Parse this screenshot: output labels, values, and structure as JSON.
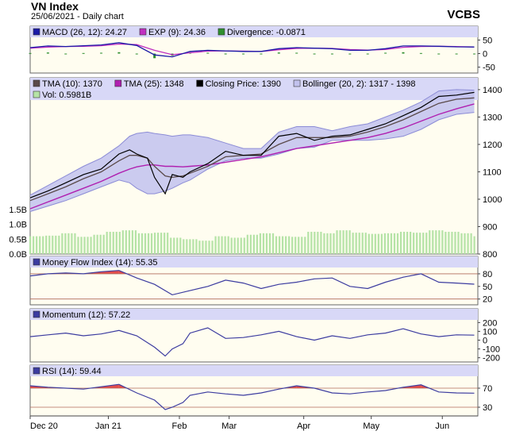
{
  "header": {
    "title": "VN Index",
    "subtitle": "25/06/2021 - Daily chart",
    "brand": "VCBS"
  },
  "colors": {
    "background": "#fffdf0",
    "legend_band": "#d8d8f7",
    "price": "#000000",
    "tma10": "#5a4a4a",
    "tma25": "#b020b0",
    "bollinger_fill": "#c2c2ee",
    "bollinger_line": "#8c8cd6",
    "volume": "#b5e3a6",
    "macd": "#1a1aa6",
    "signal": "#c030c0",
    "divergence": "#2f8f2f",
    "indicator_line": "#3c3ca0",
    "overbought_fill": "#e03a3a",
    "threshold": "#b06a5a"
  },
  "chart_data": [
    {
      "type": "line",
      "panel": "MACD",
      "legend": [
        {
          "text": "MACD (26, 12): 24.27",
          "color": "#1a1aa6"
        },
        {
          "text": "EXP (9): 24.36",
          "color": "#c030c0"
        },
        {
          "text": "Divergence: -0.0871",
          "color": "#2f8f2f"
        }
      ],
      "yticks": [
        "50",
        "0",
        "-50"
      ],
      "ylim": [
        -60,
        60
      ],
      "series": [
        {
          "name": "MACD (26, 12)",
          "x": [
            0,
            5,
            10,
            15,
            20,
            25,
            30,
            35,
            40,
            45,
            50,
            55,
            60,
            65,
            70,
            75,
            80,
            85,
            90,
            95,
            100,
            105,
            110,
            115,
            120,
            125
          ],
          "values": [
            22,
            28,
            26,
            29,
            32,
            40,
            30,
            -5,
            -12,
            8,
            12,
            10,
            8,
            8,
            18,
            22,
            20,
            18,
            12,
            12,
            18,
            28,
            28,
            27,
            25,
            24.27
          ]
        },
        {
          "name": "EXP (9)",
          "x": [
            0,
            5,
            10,
            15,
            20,
            25,
            30,
            35,
            40,
            45,
            50,
            55,
            60,
            65,
            70,
            75,
            80,
            85,
            90,
            95,
            100,
            105,
            110,
            115,
            120,
            125
          ],
          "values": [
            20,
            24,
            26,
            27,
            29,
            35,
            33,
            12,
            -4,
            3,
            9,
            10,
            9,
            8,
            14,
            19,
            20,
            19,
            15,
            13,
            15,
            23,
            26,
            27,
            26,
            24.36
          ]
        },
        {
          "name": "Divergence",
          "x": [
            0,
            5,
            10,
            15,
            20,
            25,
            30,
            35,
            40,
            45,
            50,
            55,
            60,
            65,
            70,
            75,
            80,
            85,
            90,
            95,
            100,
            105,
            110,
            115,
            120,
            125
          ],
          "values": [
            2,
            4,
            0,
            2,
            3,
            5,
            -3,
            -17,
            -8,
            5,
            3,
            0,
            -1,
            0,
            4,
            3,
            0,
            -1,
            -3,
            -1,
            3,
            5,
            2,
            0,
            -1,
            -0.0871
          ]
        }
      ]
    },
    {
      "type": "line",
      "panel": "Price",
      "legend": [
        {
          "text": "TMA (10): 1370",
          "color": "#5a4a4a"
        },
        {
          "text": "TMA (25): 1348",
          "color": "#b020b0"
        },
        {
          "text": "Closing Price: 1390",
          "color": "#000000"
        },
        {
          "text": "Bollinger (20, 2): 1317 - 1398",
          "color": "#c2c2ee"
        },
        {
          "text": "Vol: 0.5981B",
          "color": "#b5e3a6"
        }
      ],
      "yticks": [
        "1400",
        "1300",
        "1200",
        "1100",
        "1000",
        "900",
        "800"
      ],
      "ylim": [
        800,
        1420
      ],
      "volume_ticks": [
        "1.5B",
        "1.0B",
        "0.5B",
        "0.0B"
      ],
      "volume_ylim": [
        0,
        1.5
      ],
      "x": [
        0,
        5,
        10,
        15,
        20,
        25,
        28,
        30,
        33,
        35,
        38,
        40,
        43,
        45,
        50,
        55,
        60,
        65,
        70,
        75,
        80,
        85,
        90,
        95,
        100,
        105,
        110,
        115,
        120,
        125
      ],
      "series": [
        {
          "name": "Closing Price",
          "values": [
            1005,
            1030,
            1060,
            1090,
            1110,
            1165,
            1180,
            1165,
            1150,
            1080,
            1020,
            1090,
            1080,
            1100,
            1130,
            1175,
            1160,
            1160,
            1230,
            1240,
            1215,
            1230,
            1235,
            1255,
            1275,
            1305,
            1335,
            1375,
            1380,
            1390
          ]
        },
        {
          "name": "TMA (10)",
          "values": [
            995,
            1020,
            1045,
            1075,
            1100,
            1140,
            1160,
            1160,
            1150,
            1120,
            1085,
            1080,
            1085,
            1095,
            1120,
            1155,
            1160,
            1165,
            1200,
            1225,
            1225,
            1225,
            1230,
            1245,
            1265,
            1290,
            1320,
            1350,
            1365,
            1370
          ]
        },
        {
          "name": "TMA (25)",
          "values": [
            965,
            990,
            1015,
            1040,
            1065,
            1095,
            1110,
            1118,
            1125,
            1125,
            1120,
            1120,
            1118,
            1120,
            1125,
            1135,
            1145,
            1155,
            1170,
            1185,
            1195,
            1205,
            1215,
            1225,
            1240,
            1260,
            1285,
            1310,
            1330,
            1348
          ]
        },
        {
          "name": "Bollinger upper",
          "values": [
            1015,
            1050,
            1085,
            1120,
            1150,
            1195,
            1230,
            1240,
            1245,
            1240,
            1235,
            1230,
            1235,
            1235,
            1225,
            1205,
            1185,
            1185,
            1245,
            1265,
            1265,
            1250,
            1265,
            1275,
            1300,
            1325,
            1355,
            1395,
            1400,
            1398
          ]
        },
        {
          "name": "Bollinger lower",
          "values": [
            955,
            975,
            995,
            1020,
            1045,
            1070,
            1060,
            1040,
            1020,
            1020,
            1030,
            1040,
            1060,
            1070,
            1110,
            1140,
            1150,
            1150,
            1165,
            1185,
            1190,
            1215,
            1215,
            1215,
            1220,
            1230,
            1255,
            1290,
            1310,
            1317
          ]
        }
      ],
      "volume": [
        0.6,
        0.62,
        0.7,
        0.58,
        0.65,
        0.75,
        0.8,
        0.7,
        0.72,
        0.55,
        0.5,
        0.45,
        0.6,
        0.55,
        0.65,
        0.7,
        0.6,
        0.58,
        0.75,
        0.7,
        0.8,
        0.72,
        0.68,
        0.7,
        0.75,
        0.72,
        0.8,
        0.75,
        0.7,
        0.6
      ]
    },
    {
      "type": "line",
      "panel": "Money Flow Index",
      "legend": [
        {
          "text": "Money Flow Index (14): 55.35",
          "color": "#3c3ca0"
        }
      ],
      "yticks": [
        "80",
        "50",
        "20"
      ],
      "ylim": [
        10,
        95
      ],
      "thresholds": [
        80,
        20
      ],
      "x": [
        0,
        5,
        10,
        15,
        20,
        25,
        30,
        35,
        40,
        45,
        50,
        55,
        60,
        65,
        70,
        75,
        80,
        85,
        90,
        95,
        100,
        105,
        110,
        115,
        120,
        125
      ],
      "series": [
        {
          "name": "Money Flow Index (14)",
          "values": [
            75,
            80,
            82,
            80,
            85,
            88,
            70,
            55,
            30,
            40,
            50,
            65,
            58,
            45,
            55,
            60,
            68,
            70,
            50,
            45,
            60,
            72,
            80,
            60,
            58,
            55.35
          ]
        }
      ]
    },
    {
      "type": "line",
      "panel": "Momentum",
      "legend": [
        {
          "text": "Momentum (12): 57.22",
          "color": "#3c3ca0"
        }
      ],
      "yticks": [
        "200",
        "100",
        "0",
        "-100",
        "-200"
      ],
      "ylim": [
        -230,
        230
      ],
      "x": [
        0,
        5,
        10,
        15,
        20,
        25,
        30,
        35,
        38,
        40,
        43,
        45,
        50,
        55,
        60,
        65,
        70,
        75,
        80,
        85,
        90,
        95,
        100,
        105,
        110,
        115,
        120,
        125
      ],
      "series": [
        {
          "name": "Momentum (12)",
          "values": [
            40,
            60,
            80,
            50,
            70,
            110,
            50,
            -80,
            -180,
            -100,
            -40,
            80,
            140,
            20,
            30,
            60,
            100,
            40,
            0,
            50,
            20,
            60,
            80,
            130,
            70,
            40,
            60,
            57.22
          ]
        }
      ]
    },
    {
      "type": "line",
      "panel": "RSI",
      "legend": [
        {
          "text": "RSI (14): 59.44",
          "color": "#3c3ca0"
        }
      ],
      "yticks": [
        "70",
        "30"
      ],
      "ylim": [
        15,
        95
      ],
      "thresholds": [
        70,
        30
      ],
      "x": [
        0,
        5,
        10,
        15,
        20,
        25,
        30,
        35,
        38,
        40,
        43,
        45,
        50,
        55,
        60,
        65,
        70,
        75,
        80,
        85,
        90,
        95,
        100,
        105,
        110,
        115,
        120,
        125
      ],
      "series": [
        {
          "name": "RSI (14)",
          "values": [
            75,
            72,
            70,
            68,
            73,
            78,
            60,
            45,
            25,
            30,
            40,
            55,
            62,
            58,
            55,
            60,
            68,
            75,
            70,
            60,
            58,
            62,
            65,
            72,
            77,
            62,
            60,
            59.44
          ]
        }
      ]
    }
  ],
  "x_axis": {
    "labels": [
      {
        "text": "Dec 20",
        "x": 0
      },
      {
        "text": "Jan 21",
        "x": 22
      },
      {
        "text": "Feb",
        "x": 42
      },
      {
        "text": "Mar",
        "x": 56
      },
      {
        "text": "Apr",
        "x": 77
      },
      {
        "text": "May",
        "x": 96
      },
      {
        "text": "Jun",
        "x": 116
      }
    ]
  }
}
